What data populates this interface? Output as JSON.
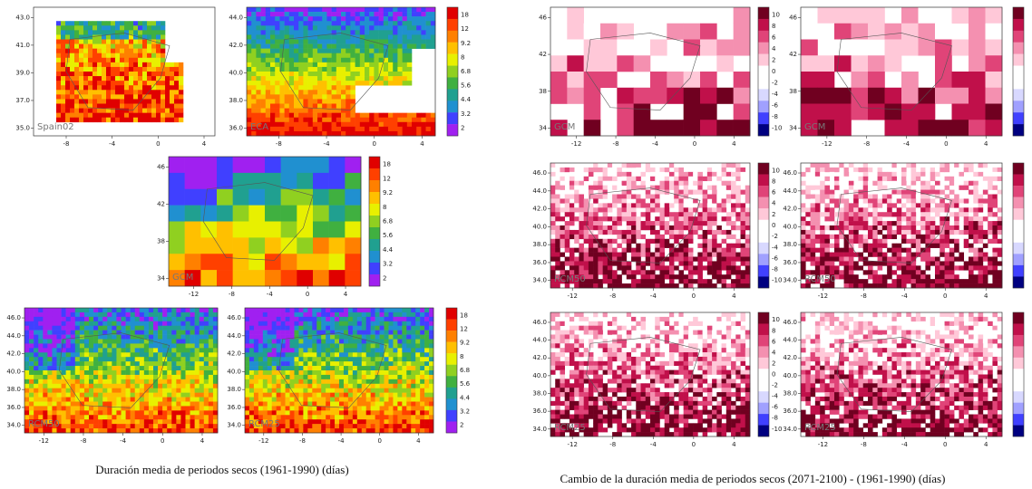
{
  "left_figure": {
    "caption": "Duración media de periodos secos (1961-1990) (días)",
    "colorbar_ticks": [
      "18",
      "12",
      "9.2",
      "8",
      "6.8",
      "5.6",
      "4.4",
      "3.2",
      "2"
    ],
    "panels": [
      {
        "label": "Spain02",
        "xticks": [
          "-8",
          "-4",
          "0",
          "4"
        ],
        "yticks": [
          "43.0",
          "41.0",
          "39.0",
          "37.0",
          "35.0"
        ]
      },
      {
        "label": "ECA",
        "xticks": [
          "-8",
          "-4",
          "0",
          "4"
        ],
        "yticks": [
          "44.0",
          "42.0",
          "40.0",
          "38.0",
          "36.0"
        ]
      },
      {
        "label": "GCM",
        "xticks": [
          "-12",
          "-8",
          "-4",
          "0",
          "4"
        ],
        "yticks": [
          "46",
          "42",
          "38",
          "34"
        ]
      },
      {
        "label": "RCM50",
        "xticks": [
          "-12",
          "-8",
          "-4",
          "0",
          "4"
        ],
        "yticks": [
          "46.0",
          "44.0",
          "42.0",
          "40.0",
          "38.0",
          "36.0",
          "34.0"
        ]
      },
      {
        "label": "RCM25",
        "xticks": [
          "-12",
          "-8",
          "-4",
          "0",
          "4"
        ],
        "yticks": [
          "46.0",
          "44.0",
          "42.0",
          "40.0",
          "38.0",
          "36.0",
          "34.0"
        ]
      }
    ]
  },
  "right_figure": {
    "caption": "Cambio de la duración media de periodos secos (2071-2100) - (1961-1990) (días)",
    "colorbar_ticks": [
      "10",
      "8",
      "6",
      "4",
      "2",
      "0",
      "-2",
      "-4",
      "-6",
      "-8",
      "-10"
    ],
    "panels": [
      {
        "label": "GCM",
        "xticks": [
          "-12",
          "-8",
          "-4",
          "0",
          "4"
        ],
        "yticks": [
          "46",
          "42",
          "38",
          "34"
        ]
      },
      {
        "label": "RCM50",
        "xticks": [
          "-12",
          "-8",
          "-4",
          "0",
          "4"
        ],
        "yticks": [
          "46.0",
          "44.0",
          "42.0",
          "40.0",
          "38.0",
          "36.0",
          "34.0"
        ]
      },
      {
        "label": "RCM25",
        "xticks": [
          "-12",
          "-8",
          "-4",
          "0",
          "4"
        ],
        "yticks": [
          "46.0",
          "44.0",
          "42.0",
          "40.0",
          "38.0",
          "36.0",
          "34.0"
        ]
      }
    ]
  }
}
